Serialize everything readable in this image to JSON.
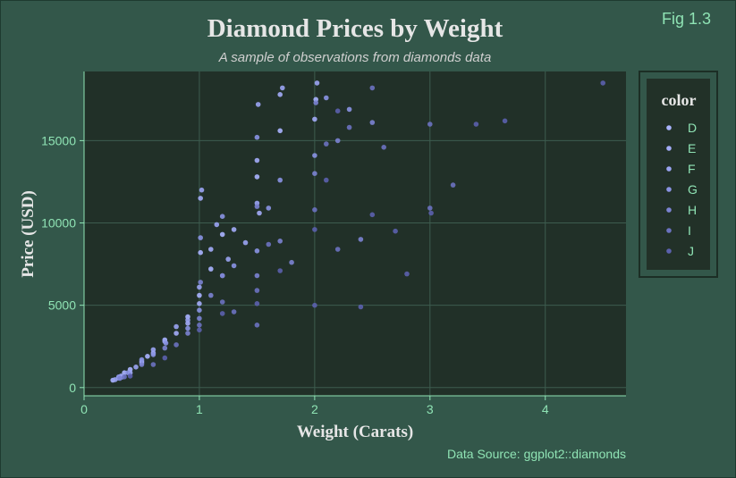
{
  "fig_label": "Fig 1.3",
  "colors": {
    "background": "#33574a",
    "panel": "#213028",
    "grid": "#3d5c4f",
    "axis": "#8fe3b4",
    "tick_text": "#8fe3b4",
    "title_text": "#e6e6e6",
    "subtitle_text": "#cfcfcf",
    "legend_border": "#1c2e25",
    "legend_fill": "#223128",
    "caption_text": "#8fe3b4"
  },
  "chart_data": {
    "type": "scatter",
    "title": "Diamond Prices by Weight",
    "subtitle": "A sample of observations from diamonds data",
    "xlabel": "Weight (Carats)",
    "ylabel": "Price (USD)",
    "caption": "Data Source: ggplot2::diamonds",
    "xlim": [
      0,
      4.7
    ],
    "ylim": [
      -500,
      19200
    ],
    "xticks": [
      0,
      1,
      2,
      3,
      4
    ],
    "yticks": [
      0,
      5000,
      10000,
      15000
    ],
    "grid": true,
    "legend": {
      "title": "color",
      "placement": "right",
      "entries": [
        "D",
        "E",
        "F",
        "G",
        "H",
        "I",
        "J"
      ]
    },
    "series": [
      {
        "name": "D",
        "color": "#aab4ff",
        "points": [
          [
            0.3,
            600
          ],
          [
            0.35,
            900
          ],
          [
            0.5,
            1600
          ],
          [
            0.7,
            2900
          ],
          [
            0.9,
            4300
          ],
          [
            1.0,
            5600
          ],
          [
            1.01,
            8200
          ],
          [
            1.2,
            9300
          ],
          [
            1.5,
            12800
          ],
          [
            1.7,
            15600
          ],
          [
            2.01,
            17500
          ],
          [
            0.4,
            1100
          ],
          [
            0.55,
            1900
          ],
          [
            1.1,
            7200
          ],
          [
            0.25,
            450
          ]
        ]
      },
      {
        "name": "E",
        "color": "#a3acf8",
        "points": [
          [
            0.3,
            580
          ],
          [
            0.4,
            900
          ],
          [
            0.6,
            2100
          ],
          [
            0.8,
            3300
          ],
          [
            1.0,
            5100
          ],
          [
            1.01,
            11500
          ],
          [
            1.1,
            8400
          ],
          [
            1.3,
            9600
          ],
          [
            1.5,
            13800
          ],
          [
            1.52,
            10600
          ],
          [
            1.7,
            17800
          ],
          [
            2.0,
            16300
          ],
          [
            0.32,
            700
          ],
          [
            0.5,
            1500
          ],
          [
            0.9,
            3900
          ],
          [
            1.2,
            6800
          ]
        ]
      },
      {
        "name": "F",
        "color": "#9aa4f2",
        "points": [
          [
            0.33,
            640
          ],
          [
            0.45,
            1250
          ],
          [
            0.7,
            2800
          ],
          [
            0.9,
            4100
          ],
          [
            1.0,
            6100
          ],
          [
            1.02,
            12000
          ],
          [
            1.25,
            7800
          ],
          [
            1.5,
            11200
          ],
          [
            1.51,
            17200
          ],
          [
            1.72,
            18200
          ],
          [
            2.02,
            18500
          ],
          [
            0.27,
            480
          ],
          [
            0.6,
            2300
          ],
          [
            1.15,
            9900
          ],
          [
            1.4,
            8800
          ],
          [
            0.8,
            3700
          ]
        ]
      },
      {
        "name": "G",
        "color": "#8a93e3",
        "points": [
          [
            0.3,
            650
          ],
          [
            0.5,
            1700
          ],
          [
            0.71,
            2700
          ],
          [
            1.0,
            4700
          ],
          [
            1.01,
            9100
          ],
          [
            1.2,
            10400
          ],
          [
            1.5,
            8300
          ],
          [
            1.5,
            15200
          ],
          [
            1.7,
            12600
          ],
          [
            2.0,
            14100
          ],
          [
            2.1,
            17600
          ],
          [
            2.3,
            16900
          ],
          [
            0.38,
            900
          ],
          [
            0.9,
            3600
          ],
          [
            1.3,
            7400
          ],
          [
            1.6,
            10900
          ],
          [
            0.6,
            2000
          ]
        ]
      },
      {
        "name": "H",
        "color": "#7b83d2",
        "points": [
          [
            0.31,
            560
          ],
          [
            0.5,
            1400
          ],
          [
            0.7,
            2400
          ],
          [
            1.0,
            4200
          ],
          [
            1.01,
            6400
          ],
          [
            1.2,
            6800
          ],
          [
            1.5,
            6800
          ],
          [
            1.5,
            11000
          ],
          [
            1.7,
            8900
          ],
          [
            2.0,
            13000
          ],
          [
            2.01,
            17300
          ],
          [
            2.2,
            15000
          ],
          [
            2.5,
            16100
          ],
          [
            2.4,
            9000
          ],
          [
            0.9,
            3300
          ],
          [
            1.1,
            5600
          ],
          [
            1.8,
            7600
          ]
        ]
      },
      {
        "name": "I",
        "color": "#6b72c0",
        "points": [
          [
            0.35,
            650
          ],
          [
            0.6,
            1400
          ],
          [
            0.8,
            2600
          ],
          [
            1.0,
            3800
          ],
          [
            1.2,
            5200
          ],
          [
            1.5,
            5900
          ],
          [
            1.6,
            8700
          ],
          [
            2.0,
            10800
          ],
          [
            2.1,
            14800
          ],
          [
            2.3,
            15800
          ],
          [
            2.5,
            18200
          ],
          [
            2.6,
            14600
          ],
          [
            3.0,
            10900
          ],
          [
            3.2,
            12300
          ],
          [
            3.0,
            16000
          ],
          [
            2.2,
            8400
          ],
          [
            1.5,
            3800
          ],
          [
            1.3,
            4600
          ]
        ]
      },
      {
        "name": "J",
        "color": "#5b61ad",
        "points": [
          [
            0.4,
            700
          ],
          [
            0.7,
            1800
          ],
          [
            1.0,
            3500
          ],
          [
            1.2,
            4500
          ],
          [
            1.5,
            5100
          ],
          [
            1.7,
            7100
          ],
          [
            2.0,
            5000
          ],
          [
            2.0,
            9600
          ],
          [
            2.1,
            12600
          ],
          [
            2.2,
            16800
          ],
          [
            2.5,
            10500
          ],
          [
            2.7,
            9500
          ],
          [
            2.8,
            6900
          ],
          [
            3.4,
            16000
          ],
          [
            3.65,
            16200
          ],
          [
            4.5,
            18500
          ],
          [
            3.01,
            10600
          ],
          [
            2.4,
            4900
          ]
        ]
      }
    ]
  }
}
